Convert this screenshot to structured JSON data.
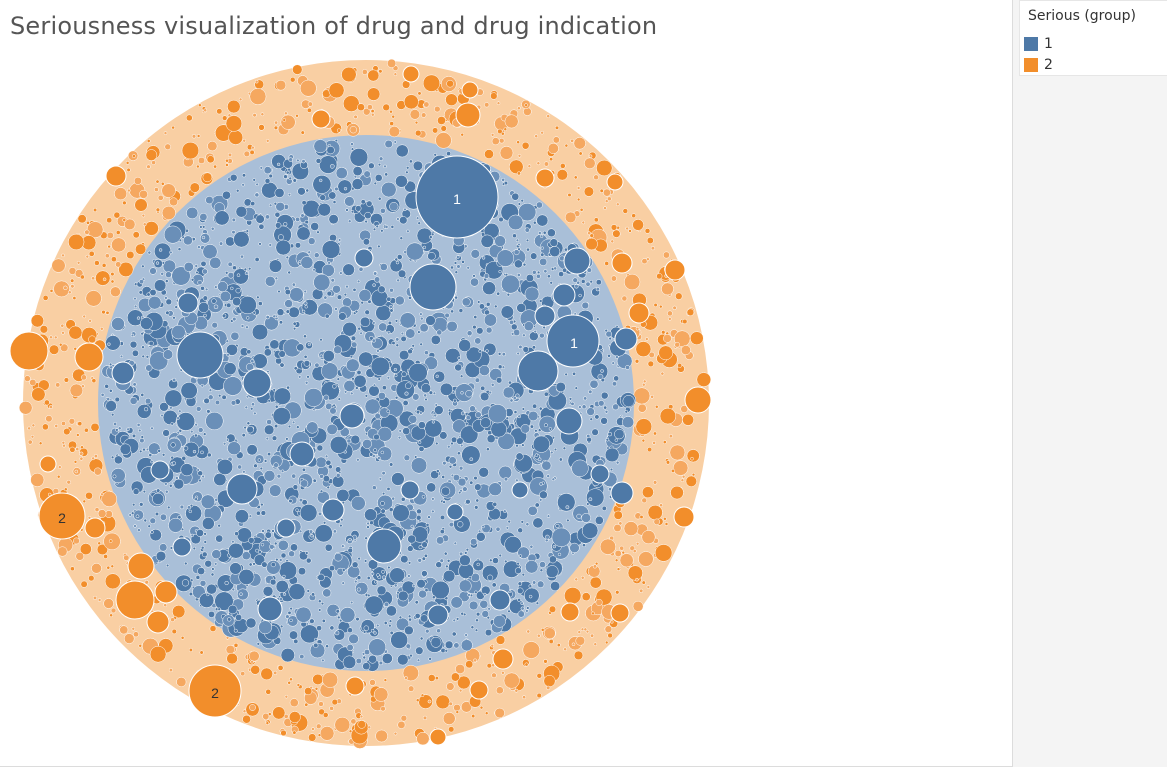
{
  "chart_data": {
    "type": "packed-bubble",
    "title": "Seriousness visualization of drug and drug indication",
    "legend": {
      "title": "Serious (group)",
      "placement": "top-right",
      "items": [
        {
          "label": "1",
          "color": "#4e79a7"
        },
        {
          "label": "2",
          "color": "#f28e2b"
        }
      ]
    },
    "series": [
      {
        "name": "1",
        "color": "#4e79a7",
        "light_color": "#a9bfd8"
      },
      {
        "name": "2",
        "color": "#f28e2b",
        "light_color": "#f9cfa3"
      }
    ],
    "bubble_labels": [
      "1",
      "1",
      "2",
      "2"
    ]
  }
}
